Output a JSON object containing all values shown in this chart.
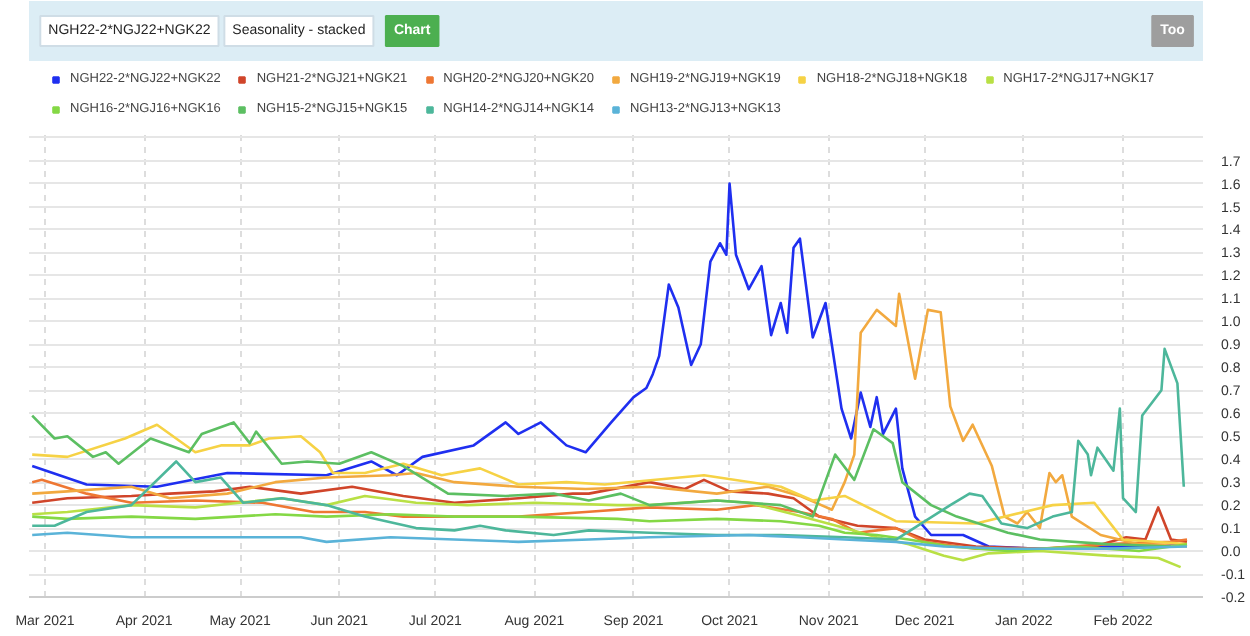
{
  "chart_data": {
    "type": "line",
    "annotations": [
      "NGH22-2*NGJ22+NGK22",
      "Seasonality - stacked",
      "Chart",
      "Too"
    ],
    "xlim": [
      "2021-02-24",
      "2022-02-26"
    ],
    "xticks": [
      {
        "value": "2021-03-01",
        "label": "Mar 2021"
      },
      {
        "value": "2021-04-01",
        "label": "Apr 2021"
      },
      {
        "value": "2021-05-01",
        "label": "May 2021"
      },
      {
        "value": "2021-06-01",
        "label": "Jun 2021"
      },
      {
        "value": "2021-07-01",
        "label": "Jul 2021"
      },
      {
        "value": "2021-08-01",
        "label": "Aug 2021"
      },
      {
        "value": "2021-09-01",
        "label": "Sep 2021"
      },
      {
        "value": "2021-10-01",
        "label": "Oct 2021"
      },
      {
        "value": "2021-11-01",
        "label": "Nov 2021"
      },
      {
        "value": "2021-12-01",
        "label": "Dec 2021"
      },
      {
        "value": "2022-01-01",
        "label": "Jan 2022"
      },
      {
        "value": "2022-02-01",
        "label": "Feb 2022"
      }
    ],
    "ylim": [
      -0.2,
      1.82
    ],
    "yticks": [
      {
        "value": -0.2,
        "label": "-0.2"
      },
      {
        "value": -0.1,
        "label": "-0.1"
      },
      {
        "value": 0,
        "label": "0.0"
      },
      {
        "value": 0.1,
        "label": "0.1"
      },
      {
        "value": 0.2,
        "label": "0.2"
      },
      {
        "value": 0.3,
        "label": "0.3"
      },
      {
        "value": 0.4,
        "label": "0.4"
      },
      {
        "value": 0.5,
        "label": "0.5"
      },
      {
        "value": 0.6,
        "label": "0.6"
      },
      {
        "value": 0.7,
        "label": "0.7"
      },
      {
        "value": 0.8,
        "label": "0.8"
      },
      {
        "value": 0.9,
        "label": "0.9"
      },
      {
        "value": 1.0,
        "label": "1.0"
      },
      {
        "value": 1.1,
        "label": "1.1"
      },
      {
        "value": 1.2,
        "label": "1.2"
      },
      {
        "value": 1.3,
        "label": "1.3"
      },
      {
        "value": 1.4,
        "label": "1.4"
      },
      {
        "value": 1.5,
        "label": "1.5"
      },
      {
        "value": 1.6,
        "label": "1.6"
      },
      {
        "value": 1.7,
        "label": "1.7"
      },
      {
        "value": 1.8,
        "label": null
      }
    ],
    "grid": true,
    "legend": "top",
    "marker": "none",
    "line_style": "solid",
    "series": [
      {
        "name": "NGH22-2*NGJ22+NGK22",
        "color": "#1f2ff0",
        "x": [
          "2021-02-25",
          "2021-03-14",
          "2021-04-05",
          "2021-04-27",
          "2021-05-28",
          "2021-06-11",
          "2021-06-19",
          "2021-06-27",
          "2021-07-13",
          "2021-07-23",
          "2021-07-27",
          "2021-08-03",
          "2021-08-11",
          "2021-08-17",
          "2021-08-25",
          "2021-09-01",
          "2021-09-05",
          "2021-09-07",
          "2021-09-09",
          "2021-09-12",
          "2021-09-15",
          "2021-09-19",
          "2021-09-22",
          "2021-09-25",
          "2021-09-28",
          "2021-09-30",
          "2021-10-01",
          "2021-10-03",
          "2021-10-07",
          "2021-10-11",
          "2021-10-14",
          "2021-10-17",
          "2021-10-19",
          "2021-10-21",
          "2021-10-23",
          "2021-10-27",
          "2021-10-31",
          "2021-11-05",
          "2021-11-08",
          "2021-11-11",
          "2021-11-14",
          "2021-11-16",
          "2021-11-18",
          "2021-11-22",
          "2021-11-24",
          "2021-11-28",
          "2021-12-03",
          "2021-12-13",
          "2021-12-21",
          "2022-01-06",
          "2022-01-27",
          "2022-02-12",
          "2022-02-20"
        ],
        "values": [
          0.37,
          0.29,
          0.28,
          0.34,
          0.33,
          0.39,
          0.33,
          0.41,
          0.46,
          0.56,
          0.51,
          0.56,
          0.46,
          0.43,
          0.56,
          0.67,
          0.71,
          0.77,
          0.85,
          1.16,
          1.06,
          0.81,
          0.9,
          1.26,
          1.34,
          1.29,
          1.6,
          1.29,
          1.14,
          1.24,
          0.94,
          1.08,
          0.95,
          1.32,
          1.36,
          0.93,
          1.08,
          0.62,
          0.49,
          0.69,
          0.54,
          0.67,
          0.51,
          0.62,
          0.36,
          0.15,
          0.07,
          0.07,
          0.02,
          0.01,
          0.02,
          0.02,
          0.03
        ]
      },
      {
        "name": "NGH21-2*NGJ21+NGK21",
        "color": "#d0452a",
        "x": [
          "2021-02-25",
          "2021-03-08",
          "2021-03-28",
          "2021-04-09",
          "2021-04-23",
          "2021-05-04",
          "2021-05-20",
          "2021-06-05",
          "2021-06-21",
          "2021-07-07",
          "2021-07-27",
          "2021-08-13",
          "2021-08-18",
          "2021-09-06",
          "2021-09-17",
          "2021-09-23",
          "2021-10-01",
          "2021-10-13",
          "2021-10-21",
          "2021-10-29",
          "2021-11-10",
          "2021-11-22",
          "2021-12-01",
          "2021-12-17",
          "2022-01-06",
          "2022-01-23",
          "2022-02-02",
          "2022-02-08",
          "2022-02-12",
          "2022-02-16",
          "2022-02-21"
        ],
        "values": [
          0.21,
          0.23,
          0.24,
          0.25,
          0.26,
          0.28,
          0.25,
          0.28,
          0.24,
          0.21,
          0.23,
          0.25,
          0.25,
          0.3,
          0.27,
          0.31,
          0.26,
          0.25,
          0.23,
          0.15,
          0.11,
          0.1,
          0.05,
          0.02,
          0.01,
          0.02,
          0.06,
          0.05,
          0.19,
          0.05,
          0.04
        ]
      },
      {
        "name": "NGH20-2*NGJ20+NGK20",
        "color": "#ee7733",
        "x": [
          "2021-02-25",
          "2021-02-28",
          "2021-03-14",
          "2021-03-28",
          "2021-04-17",
          "2021-05-08",
          "2021-05-24",
          "2021-06-09",
          "2021-06-21",
          "2021-07-07",
          "2021-07-27",
          "2021-08-17",
          "2021-09-06",
          "2021-09-27",
          "2021-10-09",
          "2021-10-23",
          "2021-11-02",
          "2021-11-10",
          "2021-11-22",
          "2021-12-01",
          "2021-12-17",
          "2022-01-06",
          "2022-01-27",
          "2022-02-16",
          "2022-02-21"
        ],
        "values": [
          0.3,
          0.31,
          0.25,
          0.21,
          0.22,
          0.21,
          0.17,
          0.17,
          0.15,
          0.15,
          0.15,
          0.17,
          0.19,
          0.18,
          0.2,
          0.17,
          0.14,
          0.08,
          0.1,
          0.04,
          0.01,
          0.01,
          0.03,
          0.04,
          0.05
        ]
      },
      {
        "name": "NGH19-2*NGJ19+NGK19",
        "color": "#f2a93f",
        "x": [
          "2021-02-25",
          "2021-03-08",
          "2021-03-28",
          "2021-04-09",
          "2021-04-27",
          "2021-05-12",
          "2021-05-28",
          "2021-06-17",
          "2021-06-25",
          "2021-07-07",
          "2021-07-27",
          "2021-08-17",
          "2021-09-06",
          "2021-09-27",
          "2021-10-13",
          "2021-10-23",
          "2021-11-02",
          "2021-11-06",
          "2021-11-09",
          "2021-11-11",
          "2021-11-16",
          "2021-11-22",
          "2021-11-23",
          "2021-11-28",
          "2021-12-02",
          "2021-12-06",
          "2021-12-09",
          "2021-12-13",
          "2021-12-16",
          "2021-12-22",
          "2021-12-26",
          "2021-12-30",
          "2022-01-02",
          "2022-01-06",
          "2022-01-09",
          "2022-01-11",
          "2022-01-13",
          "2022-01-16",
          "2022-01-25",
          "2022-02-06",
          "2022-02-21"
        ],
        "values": [
          0.25,
          0.26,
          0.28,
          0.23,
          0.25,
          0.3,
          0.32,
          0.33,
          0.34,
          0.3,
          0.28,
          0.27,
          0.28,
          0.25,
          0.28,
          0.24,
          0.18,
          0.3,
          0.42,
          0.95,
          1.05,
          0.98,
          1.12,
          0.75,
          1.05,
          1.04,
          0.63,
          0.48,
          0.55,
          0.37,
          0.15,
          0.12,
          0.17,
          0.1,
          0.34,
          0.3,
          0.33,
          0.15,
          0.07,
          0.03,
          0.02
        ]
      },
      {
        "name": "NGH18-2*NGJ18+NGK18",
        "color": "#f6d245",
        "x": [
          "2021-02-25",
          "2021-03-08",
          "2021-03-26",
          "2021-04-05",
          "2021-04-11",
          "2021-04-17",
          "2021-04-25",
          "2021-05-04",
          "2021-05-10",
          "2021-05-20",
          "2021-05-26",
          "2021-05-30",
          "2021-06-09",
          "2021-06-21",
          "2021-07-03",
          "2021-07-15",
          "2021-07-27",
          "2021-08-11",
          "2021-08-23",
          "2021-09-23",
          "2021-10-17",
          "2021-10-27",
          "2021-11-06",
          "2021-11-22",
          "2021-12-17",
          "2022-01-10",
          "2022-01-23",
          "2022-02-01",
          "2022-02-21"
        ],
        "values": [
          0.42,
          0.41,
          0.49,
          0.55,
          0.49,
          0.43,
          0.46,
          0.46,
          0.49,
          0.5,
          0.43,
          0.34,
          0.34,
          0.38,
          0.33,
          0.36,
          0.29,
          0.3,
          0.29,
          0.33,
          0.28,
          0.22,
          0.24,
          0.13,
          0.12,
          0.2,
          0.21,
          0.05,
          0.03
        ]
      },
      {
        "name": "NGH17-2*NGJ17+NGK17",
        "color": "#b9e045",
        "x": [
          "2021-02-25",
          "2021-03-08",
          "2021-03-28",
          "2021-04-17",
          "2021-05-14",
          "2021-05-28",
          "2021-06-09",
          "2021-06-25",
          "2021-07-11",
          "2021-08-01",
          "2021-08-27",
          "2021-09-06",
          "2021-09-27",
          "2021-10-07",
          "2021-10-21",
          "2021-11-06",
          "2021-11-16",
          "2021-11-26",
          "2021-12-07",
          "2021-12-13",
          "2021-12-21",
          "2022-01-06",
          "2022-01-27",
          "2022-02-12",
          "2022-02-19"
        ],
        "values": [
          0.16,
          0.17,
          0.2,
          0.19,
          0.23,
          0.2,
          0.24,
          0.21,
          0.2,
          0.21,
          0.2,
          0.2,
          0.22,
          0.21,
          0.16,
          0.1,
          0.06,
          0.03,
          -0.02,
          -0.04,
          -0.01,
          0.0,
          -0.02,
          -0.03,
          -0.07
        ]
      },
      {
        "name": "NGH16-2*NGJ16+NGK16",
        "color": "#84d845",
        "x": [
          "2021-02-25",
          "2021-03-08",
          "2021-03-28",
          "2021-04-17",
          "2021-05-12",
          "2021-05-28",
          "2021-06-17",
          "2021-07-07",
          "2021-07-27",
          "2021-08-27",
          "2021-09-06",
          "2021-09-27",
          "2021-10-17",
          "2021-10-29",
          "2021-11-06",
          "2021-11-16",
          "2021-11-26",
          "2021-12-09",
          "2021-12-27",
          "2022-01-17",
          "2022-02-06",
          "2022-02-21"
        ],
        "values": [
          0.15,
          0.14,
          0.15,
          0.14,
          0.16,
          0.15,
          0.16,
          0.15,
          0.15,
          0.14,
          0.13,
          0.14,
          0.13,
          0.11,
          0.08,
          0.07,
          0.05,
          0.02,
          0.0,
          0.02,
          0.0,
          0.03
        ]
      },
      {
        "name": "NGH15-2*NGJ15+NGK15",
        "color": "#5cbf62",
        "x": [
          "2021-02-25",
          "2021-03-04",
          "2021-03-08",
          "2021-03-16",
          "2021-03-20",
          "2021-03-24",
          "2021-04-03",
          "2021-04-15",
          "2021-04-19",
          "2021-04-29",
          "2021-05-04",
          "2021-05-06",
          "2021-05-14",
          "2021-05-22",
          "2021-06-01",
          "2021-06-11",
          "2021-06-21",
          "2021-07-05",
          "2021-07-23",
          "2021-08-07",
          "2021-08-18",
          "2021-08-28",
          "2021-09-06",
          "2021-09-27",
          "2021-10-17",
          "2021-10-27",
          "2021-11-03",
          "2021-11-09",
          "2021-11-15",
          "2021-11-21",
          "2021-11-24",
          "2021-12-03",
          "2021-12-11",
          "2021-12-27",
          "2022-01-06",
          "2022-01-27",
          "2022-02-16"
        ],
        "values": [
          0.59,
          0.49,
          0.5,
          0.41,
          0.43,
          0.38,
          0.49,
          0.43,
          0.51,
          0.56,
          0.47,
          0.52,
          0.38,
          0.39,
          0.38,
          0.43,
          0.37,
          0.25,
          0.24,
          0.25,
          0.22,
          0.25,
          0.2,
          0.22,
          0.2,
          0.15,
          0.42,
          0.31,
          0.53,
          0.47,
          0.3,
          0.2,
          0.15,
          0.08,
          0.05,
          0.03,
          0.02
        ]
      },
      {
        "name": "NGH14-2*NGJ14+NGK14",
        "color": "#4db79b",
        "x": [
          "2021-02-25",
          "2021-03-04",
          "2021-03-14",
          "2021-03-28",
          "2021-04-11",
          "2021-04-17",
          "2021-04-25",
          "2021-05-02",
          "2021-05-14",
          "2021-05-28",
          "2021-06-09",
          "2021-06-25",
          "2021-07-07",
          "2021-07-15",
          "2021-07-23",
          "2021-08-07",
          "2021-08-18",
          "2021-09-06",
          "2021-09-27",
          "2021-10-17",
          "2021-11-06",
          "2021-11-22",
          "2021-12-09",
          "2021-12-15",
          "2021-12-19",
          "2021-12-25",
          "2022-01-02",
          "2022-01-10",
          "2022-01-16",
          "2022-01-18",
          "2022-01-21",
          "2022-01-22",
          "2022-01-24",
          "2022-01-27",
          "2022-01-29",
          "2022-01-31",
          "2022-02-01",
          "2022-02-05",
          "2022-02-07",
          "2022-02-13",
          "2022-02-14",
          "2022-02-18",
          "2022-02-20"
        ],
        "values": [
          0.11,
          0.11,
          0.17,
          0.2,
          0.39,
          0.3,
          0.32,
          0.21,
          0.23,
          0.2,
          0.15,
          0.1,
          0.09,
          0.11,
          0.09,
          0.07,
          0.09,
          0.08,
          0.07,
          0.07,
          0.06,
          0.05,
          0.2,
          0.25,
          0.24,
          0.12,
          0.1,
          0.15,
          0.17,
          0.48,
          0.42,
          0.33,
          0.45,
          0.39,
          0.35,
          0.62,
          0.23,
          0.17,
          0.59,
          0.7,
          0.88,
          0.73,
          0.28
        ]
      },
      {
        "name": "NGH13-2*NGJ13+NGK13",
        "color": "#5ab3d8",
        "x": [
          "2021-02-25",
          "2021-03-08",
          "2021-03-28",
          "2021-04-27",
          "2021-05-20",
          "2021-05-28",
          "2021-06-17",
          "2021-07-07",
          "2021-07-27",
          "2021-08-18",
          "2021-09-06",
          "2021-10-07",
          "2021-10-23",
          "2021-11-06",
          "2021-11-22",
          "2021-12-07",
          "2021-12-27",
          "2022-01-27",
          "2022-02-21"
        ],
        "values": [
          0.07,
          0.08,
          0.06,
          0.06,
          0.06,
          0.04,
          0.06,
          0.05,
          0.04,
          0.05,
          0.06,
          0.07,
          0.06,
          0.05,
          0.04,
          0.02,
          0.01,
          0.01,
          0.02
        ]
      }
    ]
  }
}
